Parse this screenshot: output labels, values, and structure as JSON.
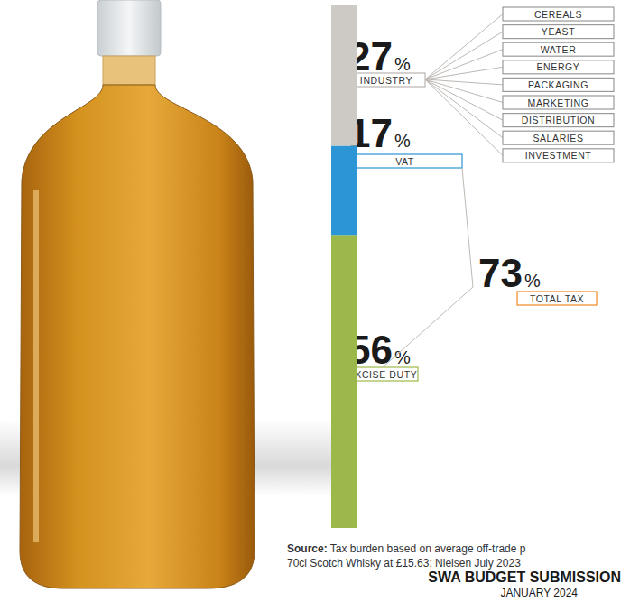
{
  "chart_data": {
    "type": "bar",
    "stacked": true,
    "tick_labels": false,
    "grid": false,
    "categories": [
      null
    ],
    "ylim": [
      0,
      100
    ],
    "series": [
      {
        "name": "EXCISE DUTY",
        "color": "#9db84a",
        "values": [
          56
        ],
        "value_labels": [
          "56%"
        ]
      },
      {
        "name": "VAT",
        "color": "#2b95d6",
        "values": [
          17
        ],
        "value_labels": [
          "17%"
        ]
      },
      {
        "name": "INDUSTRY",
        "color": "#cdc9c5",
        "values": [
          27
        ],
        "value_labels": [
          "27%"
        ]
      }
    ],
    "total": {
      "label": "TOTAL TAX",
      "value": 73,
      "value_label": "73%",
      "color": "#f08a24"
    },
    "industry_components": [
      "CEREALS",
      "YEAST",
      "WATER",
      "ENERGY",
      "PACKAGING",
      "MARKETING",
      "DISTRIBUTION",
      "SALARIES",
      "INVESTMENT"
    ],
    "source": {
      "label": "Source:",
      "lines": [
        "Tax burden based on average off-trade p",
        "70cl Scotch Whisky at £15.63; Nielsen July 2023"
      ]
    },
    "footer": [
      "SWA BUDGET SUBMISSION",
      "JANUARY 2024"
    ]
  }
}
